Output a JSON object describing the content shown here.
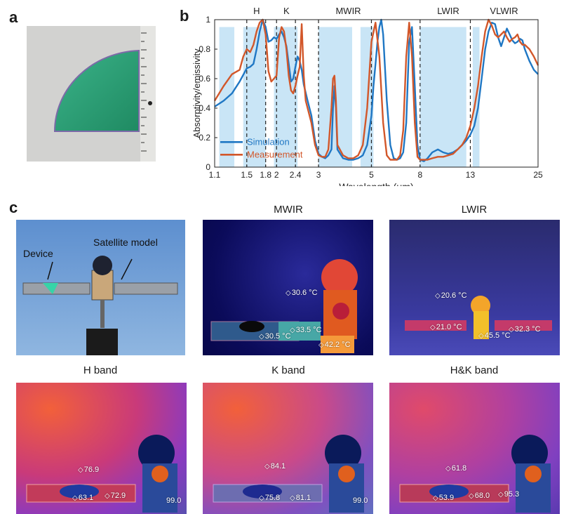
{
  "panels": {
    "a": "a",
    "b": "b",
    "c": "c"
  },
  "chart_data": {
    "type": "line",
    "xlabel": "Wavelength (μm)",
    "ylabel": "Absorptivity/emissivity",
    "xscale": "log",
    "xlim": [
      1.1,
      25
    ],
    "ylim": [
      0,
      1
    ],
    "x_ticks": [
      1.1,
      1.5,
      1.8,
      2,
      2.4,
      3,
      5,
      8,
      13,
      25
    ],
    "x_tick_labels": [
      "1.1",
      "1.5",
      "1.8",
      "2",
      "2.4",
      "3",
      "5",
      "8",
      "13",
      "25"
    ],
    "y_ticks": [
      0,
      0.2,
      0.4,
      0.6,
      0.8,
      1
    ],
    "y_tick_labels": [
      "0",
      "0.2",
      "0.4",
      "0.6",
      "0.8",
      "1"
    ],
    "band_labels": [
      {
        "text": "H",
        "x": 1.65
      },
      {
        "text": "K",
        "x": 2.2
      },
      {
        "text": "MWIR",
        "x": 4.0
      },
      {
        "text": "LWIR",
        "x": 10.5
      },
      {
        "text": "VLWIR",
        "x": 18.0
      }
    ],
    "band_boundaries": [
      1.5,
      1.8,
      2.0,
      2.4,
      3.0,
      5.0,
      8.0,
      13.0
    ],
    "legend_position": "lower-left",
    "series": [
      {
        "name": "Simulation",
        "color": "#1f77c4",
        "x": [
          1.1,
          1.2,
          1.3,
          1.4,
          1.5,
          1.55,
          1.6,
          1.65,
          1.7,
          1.75,
          1.8,
          1.85,
          1.9,
          1.95,
          2.0,
          2.05,
          2.1,
          2.15,
          2.2,
          2.25,
          2.3,
          2.35,
          2.4,
          2.45,
          2.5,
          2.55,
          2.6,
          2.7,
          2.8,
          2.9,
          3.0,
          3.1,
          3.2,
          3.3,
          3.4,
          3.45,
          3.5,
          3.55,
          3.6,
          3.8,
          4.0,
          4.2,
          4.4,
          4.6,
          4.8,
          5.0,
          5.1,
          5.2,
          5.3,
          5.4,
          5.5,
          5.6,
          5.8,
          6.0,
          6.2,
          6.4,
          6.6,
          6.8,
          7.0,
          7.2,
          7.4,
          7.6,
          7.8,
          8.0,
          8.3,
          8.6,
          9.0,
          9.5,
          10.0,
          10.5,
          11.0,
          11.5,
          12.0,
          12.5,
          13.0,
          13.5,
          14.0,
          14.5,
          15.0,
          15.5,
          16.0,
          16.5,
          17.0,
          17.5,
          18.0,
          18.5,
          19.0,
          19.5,
          20.0,
          20.5,
          21.0,
          21.5,
          22.0,
          23.0,
          24.0,
          25.0
        ],
        "y": [
          0.41,
          0.45,
          0.5,
          0.58,
          0.67,
          0.68,
          0.7,
          0.8,
          0.92,
          1.0,
          0.95,
          0.85,
          0.86,
          0.88,
          0.87,
          0.9,
          0.92,
          0.88,
          0.82,
          0.7,
          0.58,
          0.6,
          0.68,
          0.75,
          0.72,
          0.66,
          0.56,
          0.45,
          0.35,
          0.18,
          0.09,
          0.07,
          0.06,
          0.08,
          0.12,
          0.4,
          0.55,
          0.4,
          0.12,
          0.06,
          0.05,
          0.05,
          0.06,
          0.08,
          0.15,
          0.35,
          0.55,
          0.7,
          0.85,
          0.95,
          1.0,
          0.9,
          0.45,
          0.15,
          0.06,
          0.05,
          0.06,
          0.1,
          0.3,
          0.85,
          0.95,
          0.55,
          0.15,
          0.05,
          0.04,
          0.06,
          0.1,
          0.12,
          0.1,
          0.09,
          0.1,
          0.12,
          0.15,
          0.18,
          0.22,
          0.28,
          0.4,
          0.6,
          0.8,
          0.92,
          0.98,
          0.97,
          0.88,
          0.82,
          0.88,
          0.94,
          0.9,
          0.86,
          0.84,
          0.85,
          0.87,
          0.86,
          0.8,
          0.72,
          0.66,
          0.63
        ]
      },
      {
        "name": "Measurement",
        "color": "#d2572a",
        "x": [
          1.1,
          1.2,
          1.3,
          1.4,
          1.45,
          1.5,
          1.55,
          1.6,
          1.65,
          1.7,
          1.75,
          1.8,
          1.85,
          1.9,
          1.95,
          2.0,
          2.05,
          2.1,
          2.15,
          2.2,
          2.25,
          2.3,
          2.35,
          2.4,
          2.45,
          2.5,
          2.55,
          2.6,
          2.65,
          2.7,
          2.8,
          2.9,
          3.0,
          3.1,
          3.2,
          3.3,
          3.4,
          3.45,
          3.5,
          3.55,
          3.6,
          3.8,
          4.0,
          4.2,
          4.4,
          4.6,
          4.8,
          5.0,
          5.2,
          5.4,
          5.6,
          5.8,
          6.0,
          6.2,
          6.4,
          6.6,
          6.8,
          7.0,
          7.2,
          7.4,
          7.6,
          7.8,
          8.0,
          8.3,
          8.6,
          9.0,
          9.5,
          10.0,
          10.5,
          11.0,
          11.5,
          12.0,
          12.5,
          13.0,
          13.5,
          14.0,
          14.5,
          15.0,
          15.5,
          16.0,
          16.5,
          17.0,
          17.5,
          18.0,
          18.5,
          19.0,
          19.5,
          20.0,
          20.5,
          21.0,
          21.5,
          22.0,
          23.0,
          24.0,
          25.0
        ],
        "y": [
          0.45,
          0.55,
          0.63,
          0.66,
          0.75,
          0.8,
          0.78,
          0.83,
          0.92,
          0.98,
          1.0,
          0.9,
          0.65,
          0.58,
          0.6,
          0.62,
          0.88,
          0.95,
          0.92,
          0.8,
          0.62,
          0.52,
          0.5,
          0.55,
          0.62,
          0.68,
          0.97,
          0.62,
          0.45,
          0.4,
          0.3,
          0.15,
          0.08,
          0.07,
          0.07,
          0.12,
          0.4,
          0.6,
          0.62,
          0.45,
          0.15,
          0.08,
          0.06,
          0.06,
          0.08,
          0.15,
          0.4,
          0.85,
          0.98,
          0.75,
          0.3,
          0.08,
          0.05,
          0.05,
          0.05,
          0.08,
          0.25,
          0.75,
          0.98,
          0.75,
          0.3,
          0.07,
          0.05,
          0.05,
          0.05,
          0.06,
          0.07,
          0.07,
          0.08,
          0.09,
          0.12,
          0.15,
          0.2,
          0.28,
          0.4,
          0.55,
          0.75,
          0.92,
          1.0,
          0.96,
          0.9,
          0.88,
          0.9,
          0.92,
          0.88,
          0.85,
          0.87,
          0.88,
          0.9,
          0.85,
          0.83,
          0.83,
          0.8,
          0.75,
          0.69
        ]
      }
    ],
    "atm_transmission_color": "#bfe1f5"
  },
  "panel_c": {
    "photo": {
      "device_label": "Device",
      "satellite_label": "Satellite model"
    },
    "mwir": {
      "title": "MWIR",
      "temps": [
        "30.6 °C",
        "33.5 °C",
        "30.5 °C",
        "42.2 °C"
      ]
    },
    "lwir": {
      "title": "LWIR",
      "temps": [
        "20.6 °C",
        "21.0 °C",
        "32.3 °C",
        "45.5 °C"
      ]
    },
    "h_band": {
      "title": "H band",
      "temps": [
        "76.9",
        "63.1",
        "72.9",
        "99.0"
      ]
    },
    "k_band": {
      "title": "K band",
      "temps": [
        "84.1",
        "75.8",
        "81.1",
        "99.0"
      ]
    },
    "hk_band": {
      "title": "H&K band",
      "temps": [
        "61.8",
        "53.9",
        "68.0",
        "95.3"
      ]
    }
  }
}
